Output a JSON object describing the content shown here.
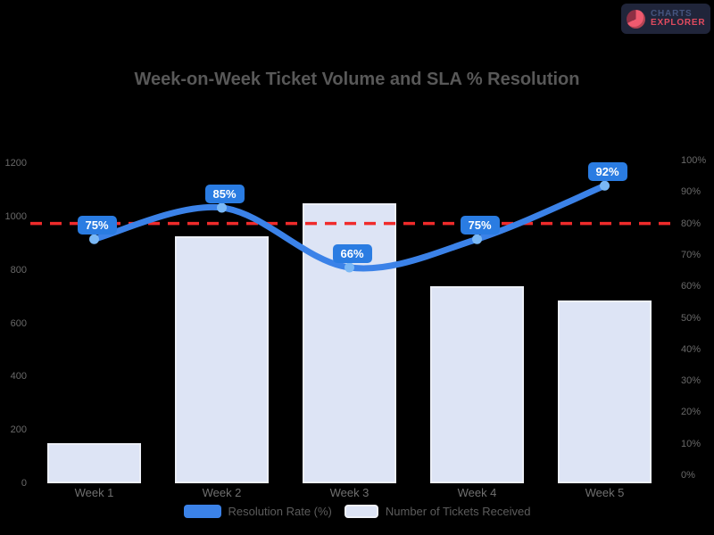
{
  "brand": {
    "line1": "CHARTS",
    "line2": "EXPLORER",
    "accent_color": "#e14b5f",
    "bg_color": "#20253a"
  },
  "chart_data": {
    "type": "bar+line combo",
    "title": "Week-on-Week Ticket Volume and SLA % Resolution",
    "title_color": "#585858",
    "background": "#000000",
    "categories": [
      "Week 1",
      "Week 2",
      "Week 3",
      "Week 4",
      "Week 5"
    ],
    "series": [
      {
        "name": "Resolution Rate (%)",
        "type": "line",
        "axis": "right",
        "color": "#3b82e8",
        "marker_color": "#7ab8f5",
        "label_bubble_color": "#2a7ce2",
        "values": [
          75,
          85,
          66,
          75,
          92
        ],
        "value_labels": [
          "75%",
          "85%",
          "66%",
          "75%",
          "92%"
        ]
      },
      {
        "name": "Number of Tickets Received",
        "type": "bar",
        "axis": "left",
        "color": "#dde4f5",
        "border_color": "#eceff7",
        "values": [
          150,
          925,
          1050,
          740,
          685
        ]
      }
    ],
    "target_line": {
      "value": 80,
      "axis": "right",
      "color": "#f02b2b",
      "style": "dashed"
    },
    "left_axis": {
      "min": 0,
      "max": 1200,
      "step": 200,
      "ticks": [
        "0",
        "200",
        "400",
        "600",
        "800",
        "1000",
        "1200"
      ]
    },
    "right_axis": {
      "min": 0,
      "max": 100,
      "step": 10,
      "ticks": [
        "0%",
        "10%",
        "20%",
        "30%",
        "40%",
        "50%",
        "60%",
        "70%",
        "80%",
        "90%",
        "100%"
      ]
    },
    "grid": false,
    "legend_position": "bottom"
  }
}
